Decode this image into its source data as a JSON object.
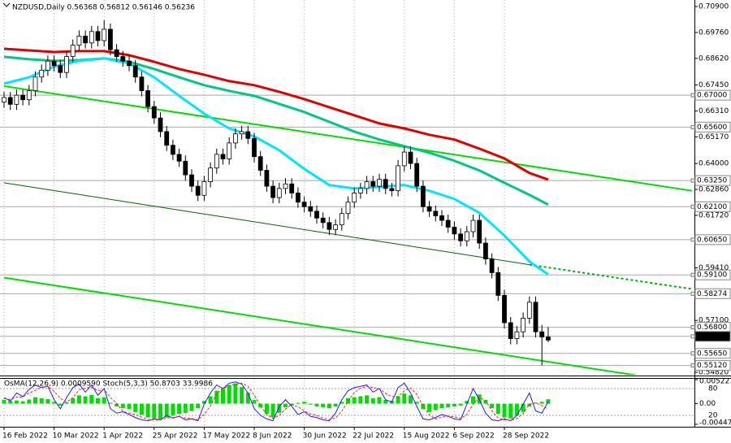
{
  "chart_data": [
    {
      "type": "candlestick",
      "title": "NZDUSD,Daily  0.56368 0.56812 0.56146 0.56236",
      "categories": [
        "16 Feb 2022",
        null,
        null,
        null,
        null,
        null,
        null,
        null,
        "10 Mar 2022",
        null,
        null,
        null,
        null,
        null,
        null,
        null,
        "1 Apr 2022",
        null,
        null,
        null,
        null,
        null,
        null,
        null,
        "25 Apr 2022",
        null,
        null,
        null,
        null,
        null,
        null,
        null,
        "17 May 2022",
        null,
        null,
        null,
        null,
        null,
        null,
        null,
        "8 Jun 2022",
        null,
        null,
        null,
        null,
        null,
        null,
        null,
        "30 Jun 2022",
        null,
        null,
        null,
        null,
        null,
        null,
        null,
        "22 Jul 2022",
        null,
        null,
        null,
        null,
        null,
        null,
        null,
        "15 Aug 2022",
        null,
        null,
        null,
        null,
        null,
        null,
        null,
        "6 Sep 2022",
        null,
        null,
        null,
        null,
        null,
        null,
        null,
        "28 Sep 2022",
        null,
        null,
        null,
        null,
        null,
        null,
        null
      ],
      "open": [
        0.667,
        0.669,
        0.666,
        0.67,
        0.668,
        0.672,
        0.678,
        0.681,
        0.685,
        0.683,
        0.68,
        0.687,
        0.692,
        0.696,
        0.693,
        0.698,
        0.694,
        0.699,
        0.69,
        0.687,
        0.685,
        0.683,
        0.678,
        0.672,
        0.665,
        0.66,
        0.654,
        0.648,
        0.644,
        0.641,
        0.635,
        0.63,
        0.626,
        0.632,
        0.638,
        0.644,
        0.642,
        0.649,
        0.653,
        0.654,
        0.651,
        0.643,
        0.637,
        0.63,
        0.625,
        0.629,
        0.631,
        0.627,
        0.623,
        0.621,
        0.619,
        0.616,
        0.614,
        0.611,
        0.613,
        0.618,
        0.623,
        0.627,
        0.629,
        0.632,
        0.63,
        0.633,
        0.629,
        0.628,
        0.639,
        0.645,
        0.64,
        0.63,
        0.621,
        0.619,
        0.617,
        0.615,
        0.612,
        0.609,
        0.606,
        0.61,
        0.615,
        0.605,
        0.598,
        0.592,
        0.582,
        0.57,
        0.563,
        0.566,
        0.572,
        0.579,
        0.566,
        0.56368
      ],
      "high": [
        0.6715,
        0.6715,
        0.6725,
        0.6725,
        0.6745,
        0.6805,
        0.6835,
        0.6875,
        0.6875,
        0.6855,
        0.6895,
        0.6945,
        0.6985,
        0.6985,
        0.7005,
        0.7005,
        0.703,
        0.7015,
        0.6925,
        0.6895,
        0.6875,
        0.6855,
        0.6805,
        0.6745,
        0.6675,
        0.6625,
        0.6565,
        0.6505,
        0.6465,
        0.6435,
        0.6375,
        0.6325,
        0.6345,
        0.6405,
        0.6465,
        0.6465,
        0.6515,
        0.6555,
        0.6565,
        0.6565,
        0.6535,
        0.6455,
        0.6395,
        0.6325,
        0.6315,
        0.6335,
        0.6335,
        0.6295,
        0.6255,
        0.6235,
        0.6215,
        0.6185,
        0.6165,
        0.6155,
        0.6205,
        0.6255,
        0.6295,
        0.6315,
        0.6345,
        0.6345,
        0.6355,
        0.6355,
        0.6315,
        0.6415,
        0.6475,
        0.6475,
        0.6425,
        0.6325,
        0.6235,
        0.6215,
        0.6195,
        0.6175,
        0.6145,
        0.6115,
        0.6125,
        0.6175,
        0.6175,
        0.6075,
        0.6005,
        0.5945,
        0.5845,
        0.5725,
        0.5685,
        0.5745,
        0.5815,
        0.5815,
        0.569,
        0.56812
      ],
      "low": [
        0.6645,
        0.6635,
        0.6635,
        0.6655,
        0.6655,
        0.6695,
        0.6755,
        0.6785,
        0.6805,
        0.6775,
        0.6775,
        0.6845,
        0.6895,
        0.6905,
        0.6905,
        0.6915,
        0.6915,
        0.6875,
        0.6845,
        0.6825,
        0.6805,
        0.6755,
        0.6695,
        0.6625,
        0.6575,
        0.6515,
        0.6455,
        0.6415,
        0.6385,
        0.6325,
        0.6275,
        0.6235,
        0.6235,
        0.6295,
        0.6355,
        0.6395,
        0.6395,
        0.6465,
        0.6505,
        0.6485,
        0.6405,
        0.6345,
        0.6275,
        0.6225,
        0.6225,
        0.6265,
        0.6245,
        0.6205,
        0.6185,
        0.6165,
        0.6135,
        0.6115,
        0.6085,
        0.6085,
        0.6105,
        0.6155,
        0.6205,
        0.6245,
        0.6265,
        0.6275,
        0.6275,
        0.6265,
        0.6255,
        0.6255,
        0.6365,
        0.6375,
        0.6275,
        0.6185,
        0.6165,
        0.6145,
        0.6125,
        0.6095,
        0.6065,
        0.6035,
        0.6035,
        0.6075,
        0.6025,
        0.5955,
        0.5895,
        0.5795,
        0.5675,
        0.5605,
        0.5605,
        0.5635,
        0.5695,
        0.5635,
        0.5512,
        0.56146
      ],
      "close": [
        0.669,
        0.666,
        0.67,
        0.668,
        0.672,
        0.678,
        0.681,
        0.685,
        0.683,
        0.68,
        0.687,
        0.692,
        0.696,
        0.693,
        0.698,
        0.694,
        0.699,
        0.69,
        0.687,
        0.685,
        0.683,
        0.678,
        0.672,
        0.665,
        0.66,
        0.654,
        0.648,
        0.644,
        0.641,
        0.635,
        0.63,
        0.626,
        0.632,
        0.638,
        0.644,
        0.642,
        0.649,
        0.653,
        0.654,
        0.651,
        0.643,
        0.637,
        0.63,
        0.625,
        0.629,
        0.631,
        0.627,
        0.623,
        0.621,
        0.619,
        0.616,
        0.614,
        0.611,
        0.613,
        0.618,
        0.623,
        0.627,
        0.629,
        0.632,
        0.63,
        0.633,
        0.629,
        0.628,
        0.639,
        0.645,
        0.64,
        0.63,
        0.621,
        0.619,
        0.617,
        0.615,
        0.612,
        0.609,
        0.606,
        0.61,
        0.615,
        0.605,
        0.598,
        0.592,
        0.582,
        0.57,
        0.563,
        0.566,
        0.572,
        0.579,
        0.566,
        0.5637,
        0.56236
      ],
      "ylim": [
        0.5482,
        0.709
      ],
      "yticks": [
        {
          "value": 0.709,
          "label": "0.70900"
        },
        {
          "value": 0.6976,
          "label": "0.69760"
        },
        {
          "value": 0.6862,
          "label": "0.68620"
        },
        {
          "value": 0.6745,
          "label": "0.67450"
        },
        {
          "value": 0.6631,
          "label": "0.66310"
        },
        {
          "value": 0.6517,
          "label": "0.65170"
        },
        {
          "value": 0.64,
          "label": "0.64000"
        },
        {
          "value": 0.6286,
          "label": "0.62860"
        },
        {
          "value": 0.6172,
          "label": "0.61720"
        },
        {
          "value": 0.5941,
          "label": "0.59410"
        },
        {
          "value": 0.571,
          "label": "0.57100"
        },
        {
          "value": 0.5482,
          "label": "0.54820"
        }
      ],
      "levels": [
        {
          "value": 0.67,
          "label": "0.67000"
        },
        {
          "value": 0.656,
          "label": "0.65600"
        },
        {
          "value": 0.6325,
          "label": "0.63250"
        },
        {
          "value": 0.621,
          "label": "0.62100"
        },
        {
          "value": 0.6065,
          "label": "0.60650"
        },
        {
          "value": 0.591,
          "label": "0.59100"
        },
        {
          "value": 0.58274,
          "label": "0.58274"
        },
        {
          "value": 0.568,
          "label": "0.56800"
        },
        {
          "value": 0.56399,
          "label": "0.56399",
          "highlight": true
        },
        {
          "value": 0.5565,
          "label": "0.55650"
        },
        {
          "value": 0.5512,
          "label": "0.55120"
        }
      ],
      "moving_averages": [
        {
          "color": "#e00000",
          "x": [
            0,
            4,
            8,
            12,
            16,
            20,
            24,
            28,
            32,
            36,
            40,
            44,
            48,
            52,
            56,
            60,
            64,
            68,
            72,
            76,
            80,
            84,
            87
          ],
          "values": [
            0.6904,
            0.6897,
            0.689,
            0.6894,
            0.6894,
            0.6876,
            0.6847,
            0.6815,
            0.679,
            0.6762,
            0.6744,
            0.6715,
            0.6683,
            0.6647,
            0.6612,
            0.6576,
            0.6554,
            0.6526,
            0.6505,
            0.6465,
            0.6422,
            0.6358,
            0.6329
          ]
        },
        {
          "color": "#00c880",
          "x": [
            0,
            4,
            8,
            12,
            16,
            20,
            24,
            28,
            32,
            36,
            40,
            44,
            48,
            52,
            56,
            60,
            64,
            68,
            72,
            76,
            80,
            84,
            87
          ],
          "values": [
            0.6869,
            0.6858,
            0.6851,
            0.6854,
            0.6862,
            0.6847,
            0.6815,
            0.6779,
            0.6744,
            0.6719,
            0.6697,
            0.6662,
            0.6626,
            0.6583,
            0.654,
            0.6505,
            0.6476,
            0.6447,
            0.6412,
            0.6369,
            0.6315,
            0.6262,
            0.6219
          ]
        },
        {
          "color": "#00e5ff",
          "x": [
            0,
            4,
            8,
            12,
            16,
            20,
            24,
            28,
            32,
            36,
            40,
            44,
            48,
            52,
            56,
            60,
            64,
            68,
            72,
            76,
            80,
            84,
            87
          ],
          "values": [
            0.6751,
            0.6779,
            0.6826,
            0.6851,
            0.6862,
            0.684,
            0.6779,
            0.6697,
            0.6619,
            0.6554,
            0.6519,
            0.6458,
            0.6376,
            0.6305,
            0.629,
            0.6297,
            0.6305,
            0.628,
            0.6244,
            0.6183,
            0.6083,
            0.5969,
            0.5912
          ]
        }
      ],
      "trendlines": [
        {
          "color": "#00dd00",
          "x": [
            0,
            110
          ],
          "values": [
            0.674,
            0.628
          ]
        },
        {
          "color": "#006400",
          "x": [
            0,
            84
          ],
          "values": [
            0.6315,
            0.5955
          ]
        },
        {
          "color": "#00b000",
          "dash": true,
          "x": [
            84,
            110
          ],
          "values": [
            0.5955,
            0.5848
          ]
        },
        {
          "color": "#00dd00",
          "x": [
            0,
            101
          ],
          "values": [
            0.5898,
            0.5469
          ]
        }
      ],
      "grid": true
    },
    {
      "type": "oscillator",
      "title": "OsMA(12,26,9) 0.0009590 Stoch(5,3,3) 50.8703 33.9986",
      "ylim": [
        -0.0044764,
        0.0052212
      ],
      "yticks": [
        0.0052212,
        {
          "value": 0,
          "label": "0.00"
        },
        -0.0044764
      ],
      "y2lim": [
        0,
        100
      ],
      "y2ticks": [
        80,
        20
      ],
      "series": [
        {
          "type": "bar",
          "color": "#00dd00",
          "values": [
            0.0008,
            0.0006,
            0.0007,
            0.0005,
            0.0009,
            0.0014,
            0.0012,
            0.001,
            0.0004,
            -0.0004,
            0.0003,
            0.0012,
            0.0018,
            0.0016,
            0.0019,
            0.0012,
            0.0014,
            0.0002,
            -0.0006,
            -0.001,
            -0.0012,
            -0.0018,
            -0.0024,
            -0.003,
            -0.0032,
            -0.0034,
            -0.003,
            -0.0026,
            -0.0022,
            -0.002,
            -0.0016,
            -0.001,
            0.0006,
            0.0016,
            0.0028,
            0.0032,
            0.004,
            0.0044,
            0.0036,
            0.0024,
            0.0008,
            -0.0008,
            -0.0022,
            -0.003,
            -0.002,
            -0.0008,
            -0.0004,
            0.0002,
            0.0004,
            -0.0002,
            -0.0006,
            -0.0008,
            -0.001,
            -0.0006,
            0.0004,
            0.0012,
            0.0014,
            0.0016,
            0.0018,
            0.0012,
            0.0014,
            0.0008,
            0.0006,
            0.0016,
            0.0022,
            0.0018,
            0.0004,
            -0.0012,
            -0.0018,
            -0.0014,
            -0.001,
            -0.0008,
            -0.0006,
            -0.0004,
            0.0006,
            0.0016,
            0.002,
            0.0008,
            -0.001,
            -0.0022,
            -0.003,
            -0.0032,
            -0.0026,
            -0.0018,
            -0.0006,
            0.0002,
            0.0004,
            0.000959
          ]
        },
        {
          "type": "line",
          "axis": "y2",
          "color": "#1a1aff",
          "values": [
            60,
            52,
            70,
            62,
            78,
            88,
            82,
            85,
            55,
            35,
            60,
            82,
            90,
            72,
            88,
            65,
            80,
            35,
            25,
            28,
            22,
            15,
            10,
            8,
            12,
            10,
            20,
            14,
            18,
            10,
            12,
            8,
            45,
            70,
            88,
            80,
            92,
            95,
            90,
            70,
            35,
            20,
            12,
            8,
            40,
            55,
            40,
            22,
            28,
            18,
            15,
            10,
            8,
            25,
            55,
            75,
            82,
            85,
            88,
            72,
            80,
            55,
            50,
            82,
            92,
            70,
            40,
            12,
            10,
            15,
            22,
            18,
            12,
            10,
            45,
            80,
            55,
            25,
            10,
            8,
            12,
            8,
            20,
            45,
            70,
            30,
            25,
            50.8703
          ]
        },
        {
          "type": "line",
          "axis": "y2",
          "color": "#ff2020",
          "dash": true,
          "values": [
            58,
            55,
            61,
            61,
            70,
            76,
            83,
            85,
            74,
            58,
            50,
            59,
            77,
            81,
            83,
            75,
            78,
            60,
            47,
            29,
            25,
            22,
            16,
            11,
            10,
            10,
            14,
            15,
            17,
            14,
            13,
            10,
            22,
            41,
            68,
            79,
            87,
            89,
            92,
            85,
            65,
            42,
            22,
            13,
            20,
            34,
            45,
            39,
            30,
            23,
            20,
            14,
            11,
            14,
            29,
            52,
            71,
            81,
            85,
            82,
            80,
            69,
            62,
            62,
            75,
            81,
            67,
            41,
            21,
            12,
            16,
            18,
            17,
            13,
            22,
            45,
            60,
            53,
            30,
            14,
            10,
            9,
            13,
            24,
            45,
            48,
            42,
            33.9986
          ]
        }
      ]
    }
  ]
}
